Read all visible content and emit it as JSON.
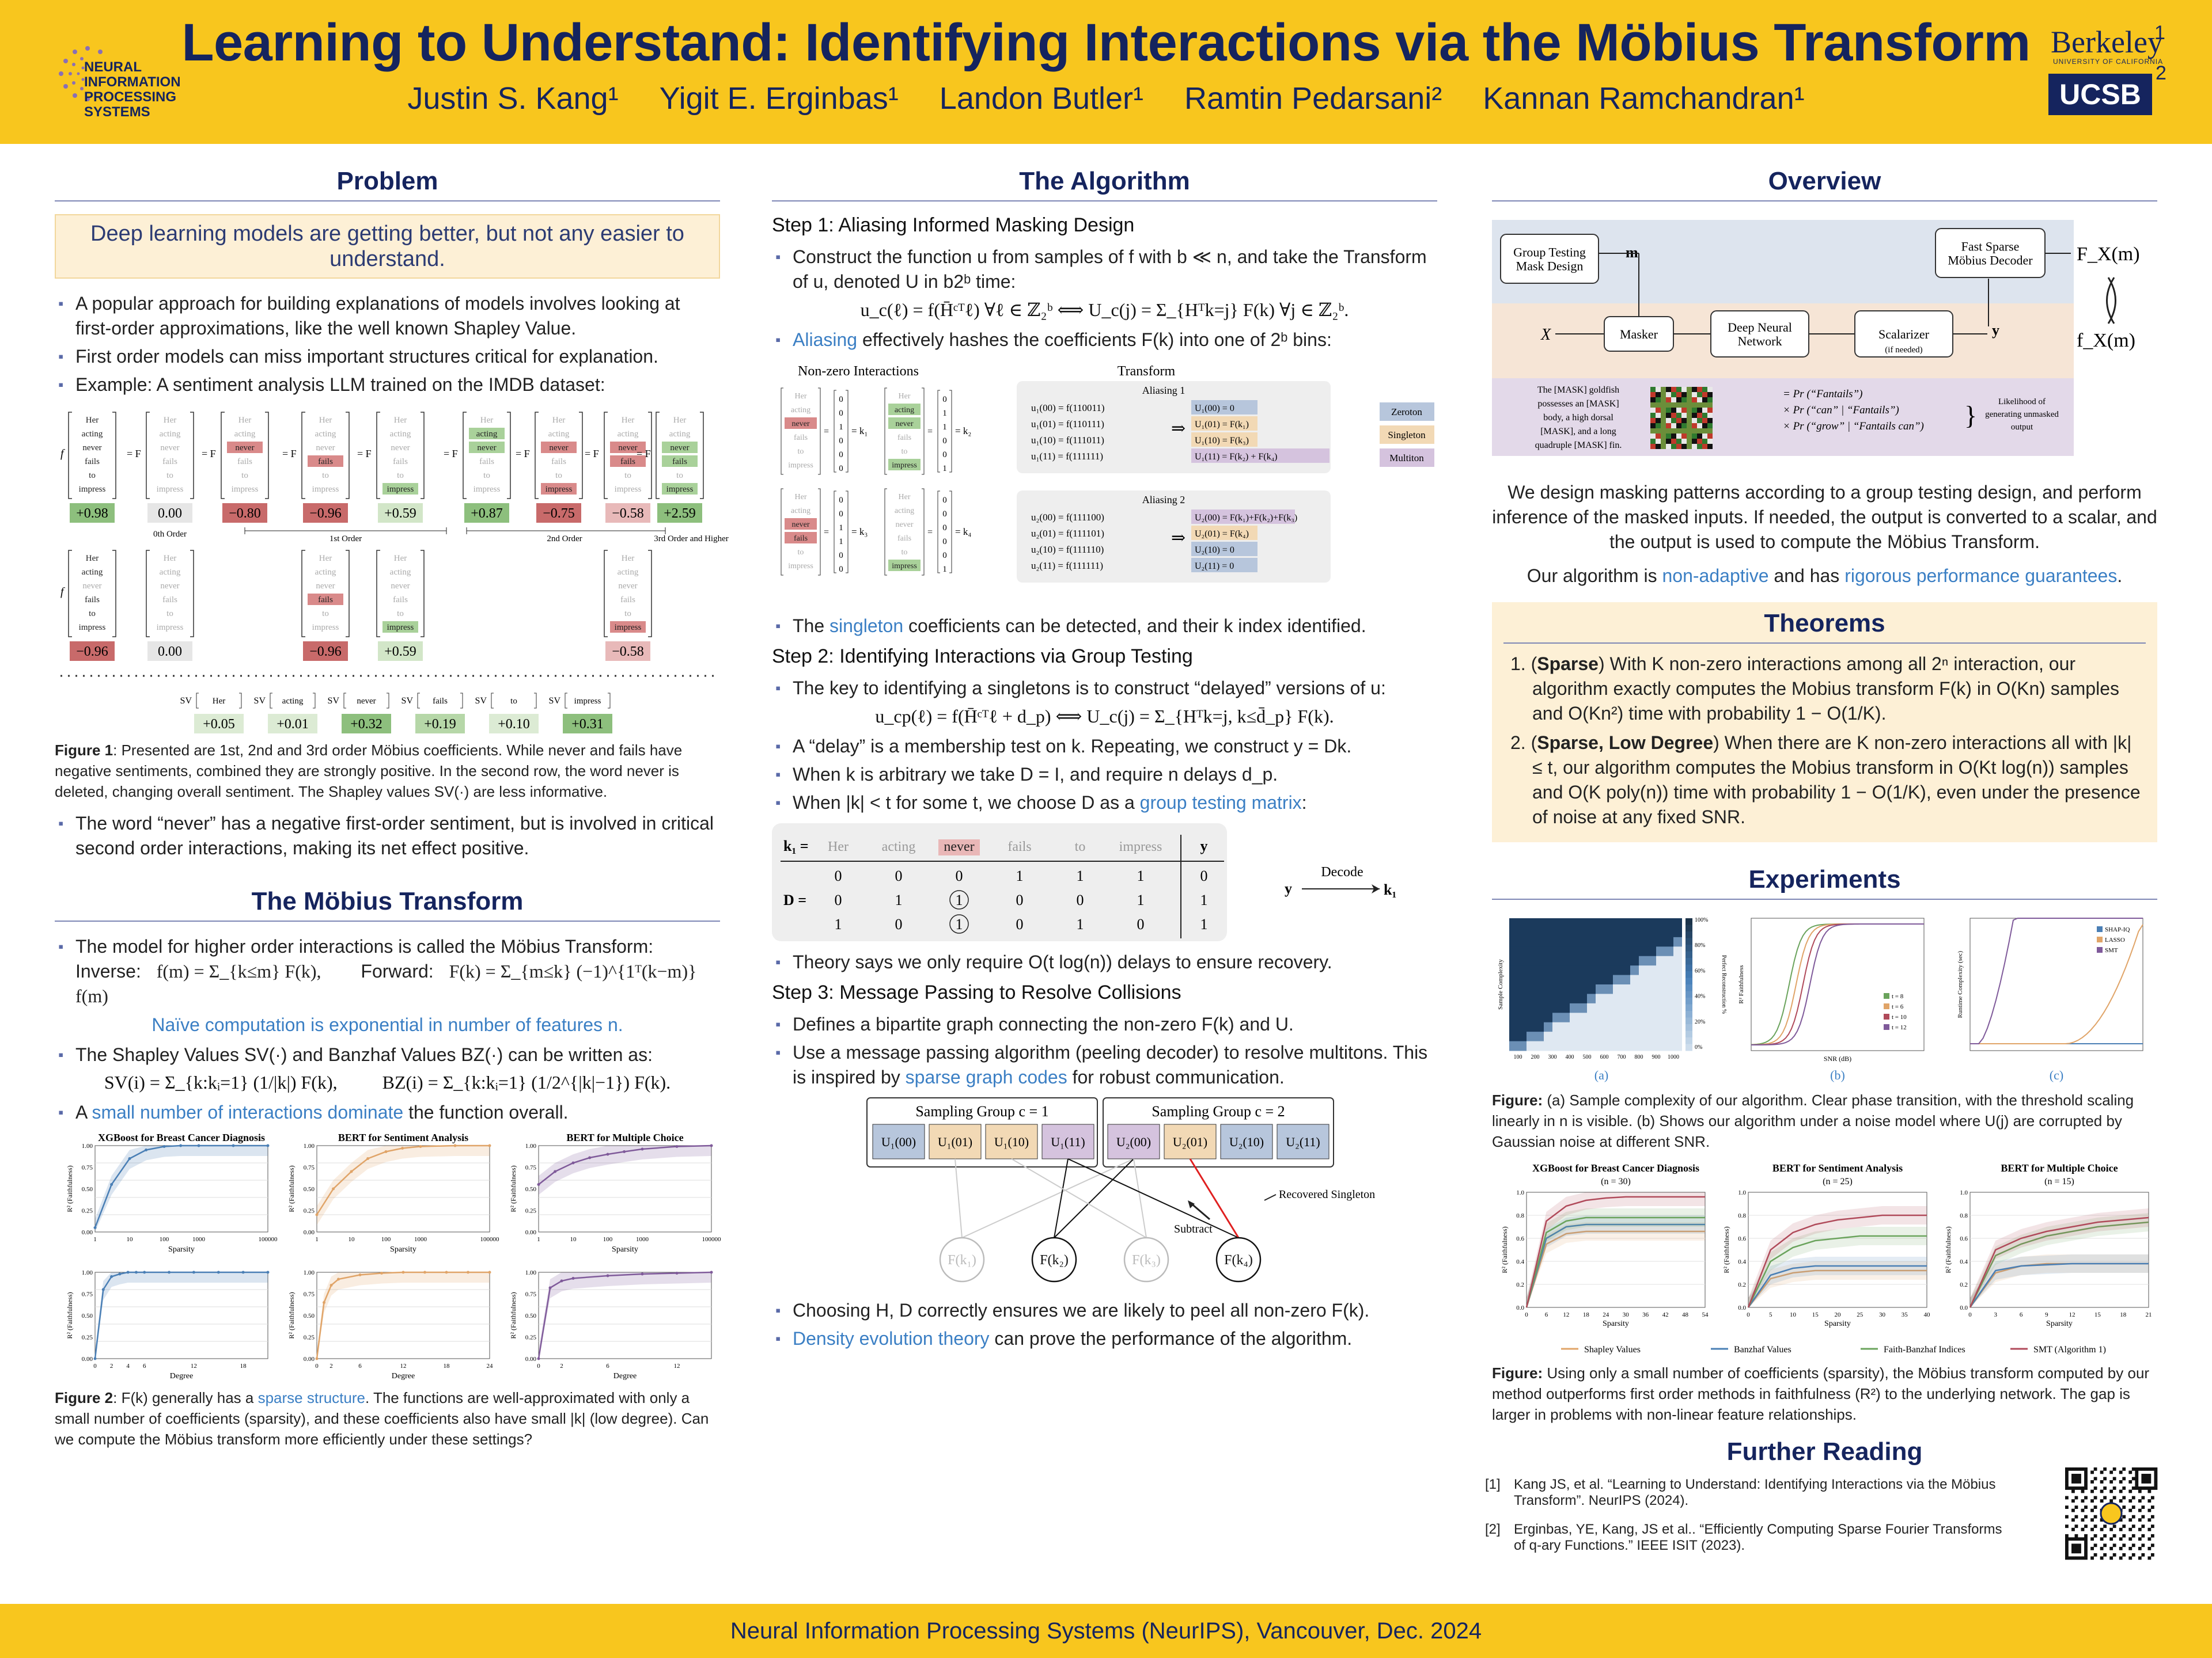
{
  "header": {
    "title": "Learning to Understand: Identifying Interactions via the Möbius Transform",
    "authors": [
      "Justin S. Kang¹",
      "Yigit E. Erginbas¹",
      "Landon Butler¹",
      "Ramtin Pedarsani²",
      "Kannan Ramchandran¹"
    ],
    "logo_left": "NEURAL INFORMATION PROCESSING SYSTEMS",
    "logo_right_1": "Berkeley",
    "logo_right_1_sub": "UNIVERSITY OF CALIFORNIA",
    "logo_right_2": "UCSB",
    "aff_1": "1",
    "aff_2": "2"
  },
  "footer": "Neural Information Processing Systems (NeurIPS), Vancouver, Dec. 2024",
  "problem": {
    "title": "Problem",
    "callout": "Deep learning models are getting better, but not any easier to understand.",
    "bullets": [
      "A popular approach for building explanations of models involves looking at first-order approximations, like the well known Shapley Value.",
      "First order models can miss important structures critical for explanation.",
      "Example: A sentiment analysis LLM trained on the IMDB dataset:"
    ],
    "fig1_words": [
      "Her",
      "acting",
      "never",
      "fails",
      "to",
      "impress"
    ],
    "fig1_row1_values": [
      "+0.98",
      "0.00",
      "−0.80",
      "−0.96",
      "+0.59",
      "+0.87",
      "−0.75",
      "−0.58",
      "+2.59"
    ],
    "fig1_row2_values": [
      "−0.96",
      "0.00",
      "−0.96",
      "+0.59",
      "−0.58"
    ],
    "fig1_orders": [
      "0th Order",
      "1st Order",
      "2nd Order",
      "3rd Order and Higher"
    ],
    "sv_values": [
      "+0.05",
      "+0.01",
      "+0.32",
      "+0.19",
      "+0.10",
      "+0.31"
    ],
    "sv_label": "SV",
    "fig1_caption_lead": "Figure 1",
    "fig1_caption": ": Presented are 1st, 2nd and 3rd order Möbius coefficients. While never and fails have negative sentiments, combined they are strongly positive. In the second row, the word never is deleted, changing overall sentiment. The Shapley values SV(·) are less informative.",
    "bullet_after": "The word “never” has a negative first-order sentiment, but is involved in critical second order interactions, making its net effect positive."
  },
  "mobius": {
    "title": "The Möbius Transform",
    "b1": "The model for higher order interactions is called the Möbius Transform:",
    "inverse_label": "Inverse:",
    "inverse_eq": "f(m) = Σ_{k≤m} F(k),",
    "forward_label": "Forward:",
    "forward_eq": "F(k) = Σ_{m≤k} (−1)^{1ᵀ(k−m)} f(m)",
    "naive": "Naïve computation is exponential in number of features n.",
    "b2": "The Shapley Values SV(·) and Banzhaf Values BZ(·) can be written as:",
    "sv_eq": "SV(i) = Σ_{k:kᵢ=1} (1/|k|) F(k),",
    "bz_eq": "BZ(i) = Σ_{k:kᵢ=1} (1/2^{|k|−1}) F(k).",
    "b3_pre": "A ",
    "b3_link": "small number of interactions dominate",
    "b3_post": " the function overall.",
    "fig2_titles": [
      "XGBoost for Breast Cancer Diagnosis",
      "BERT for Sentiment Analysis",
      "BERT for Multiple Choice"
    ],
    "fig2_xlabel_top": "Sparsity",
    "fig2_xlabel_bottom": "Degree",
    "fig2_ylabel": "R² (Faithfulness)",
    "fig2_caption_lead": "Figure 2",
    "fig2_caption_pre": ": F(k) generally has a ",
    "fig2_caption_link": "sparse structure",
    "fig2_caption_post": ". The functions are well-approximated with only a small number of coefficients (sparsity), and these coefficients also have small |k| (low degree). Can we compute the Möbius transform more efficiently under these settings?"
  },
  "algorithm": {
    "title": "The Algorithm",
    "step1": "Step 1: Aliasing Informed Masking Design",
    "s1b1": "Construct the function u from samples of f with b ≪ n, and take the Transform of u, denoted U in b2ᵇ time:",
    "s1eq": "u_c(ℓ) = f(H̄ᶜᵀℓ)  ∀ℓ ∈ ℤ₂ᵇ  ⟺  U_c(j) = Σ_{Hᵀk=j} F(k)  ∀j ∈ ℤ₂ᵇ.",
    "s1b2_link": "Aliasing",
    "s1b2": " effectively hashes the coefficients F(k) into one of 2ᵇ bins:",
    "alias_head_left": "Non-zero Interactions",
    "alias_head_right": "Transform",
    "aliasing1": "Aliasing 1",
    "aliasing2": "Aliasing 2",
    "alias1_left": [
      "u₁(00) = f(110011)",
      "u₁(01) = f(110111)",
      "u₁(10) = f(111011)",
      "u₁(11) = f(111111)"
    ],
    "alias1_right": [
      "U₁(00) = 0",
      "U₁(01) = F(k₁)",
      "U₁(10) = F(k₃)",
      "U₁(11) = F(k₂) + F(k₄)"
    ],
    "alias2_left": [
      "u₂(00) = f(111100)",
      "u₂(01) = f(111101)",
      "u₂(10) = f(111110)",
      "u₂(11) = f(111111)"
    ],
    "alias2_right": [
      "U₂(00) = F(k₁)+F(k₂)+F(k₃)",
      "U₂(01) = F(k₄)",
      "U₂(10) = 0",
      "U₂(11) = 0"
    ],
    "legend": [
      "Zeroton",
      "Singleton",
      "Multiton"
    ],
    "kvec_labels": [
      "= k₁",
      "= k₂",
      "= k₃",
      "= k₄"
    ],
    "s1b3_pre": "The ",
    "s1b3_link": "singleton",
    "s1b3_post": " coefficients can be detected, and their k index identified.",
    "step2": "Step 2: Identifying Interactions via Group Testing",
    "s2b1": "The key to identifying a singletons is to construct “delayed” versions of u:",
    "s2eq": "u_cp(ℓ) = f(H̄ᶜᵀℓ + d_p)  ⟺  U_c(j) = Σ_{Hᵀk=j, k≤d̄_p} F(k).",
    "s2b2": "A “delay” is a membership test on k. Repeating, we construct y = Dk.",
    "s2b3": "When k is arbitrary we take D = I, and require n delays d_p.",
    "s2b4_pre": "When |k| < t for some t, we choose D as a ",
    "s2b4_link": "group testing matrix",
    "s2b4_post": ":",
    "gt_k1": "k₁ =",
    "gt_words": [
      "Her",
      "acting",
      "never",
      "fails",
      "to",
      "impress"
    ],
    "gt_y": "y",
    "gt_D": "D =",
    "gt_rows": [
      [
        "0",
        "0",
        "0",
        "1",
        "1",
        "1",
        "0"
      ],
      [
        "0",
        "1",
        "1",
        "0",
        "0",
        "1",
        "1"
      ],
      [
        "1",
        "0",
        "1",
        "0",
        "1",
        "0",
        "1"
      ]
    ],
    "decode_label": "Decode",
    "decode_y": "y",
    "decode_k": "k₁",
    "s2b5": "Theory says we only require O(t log(n)) delays to ensure recovery.",
    "step3": "Step 3: Message Passing to Resolve Collisions",
    "s3b1": "Defines a bipartite graph connecting the non-zero F(k) and U.",
    "s3b2_pre": "Use a message passing algorithm (peeling decoder) to resolve multitons. This is inspired by ",
    "s3b2_link": "sparse graph codes",
    "s3b2_post": " for robust communication.",
    "sg1": "Sampling Group c = 1",
    "sg2": "Sampling Group c = 2",
    "u_nodes": [
      "U₁(00)",
      "U₁(01)",
      "U₁(10)",
      "U₁(11)",
      "U₂(00)",
      "U₂(01)",
      "U₂(10)",
      "U₂(11)"
    ],
    "f_nodes": [
      "F(k₁)",
      "F(k₂)",
      "F(k₃)",
      "F(k₄)"
    ],
    "recovered": "Recovered Singleton",
    "subtract": "Subtract",
    "s3b3": "Choosing H, D correctly ensures we are likely to peel all non-zero F(k).",
    "s3b4_link": "Density evolution theory",
    "s3b4_post": " can prove the performance of the algorithm."
  },
  "overview": {
    "title": "Overview",
    "gt_box": "Group Testing Mask Design",
    "m_label": "m",
    "fsmd_box": "Fast Sparse Möbius Decoder",
    "fxm_top": "F_X(m)",
    "fxm_bottom": "f_X(m)",
    "x_label": "X",
    "masker": "Masker",
    "dnn": "Deep Neural Network",
    "scalarizer": "Scalarizer",
    "scalarizer_sub": "(if needed)",
    "y_label": "y",
    "mask_text": "The [MASK] goldfish possesses an [MASK] body, a high dorsal [MASK], and a long quadruple [MASK] fin.",
    "prob_lines": [
      "= Pr (“Fantails”)",
      "× Pr (“can” | “Fantails”)",
      "× Pr (“grow” | “Fantails can”)"
    ],
    "likelihood": "Likelihood of generating unmasked output",
    "p1": "We design masking patterns according to a group testing design, and perform inference of the masked inputs. If needed, the output is converted to a scalar, and the output is used to compute the Möbius Transform.",
    "p2_pre": "Our algorithm is ",
    "p2_link1": "non-adaptive",
    "p2_mid": " and has ",
    "p2_link2": "rigorous performance guarantees",
    "p2_post": "."
  },
  "theorems": {
    "title": "Theorems",
    "t1_lead": "Sparse",
    "t1": ") With K non-zero interactions among all 2ⁿ interaction, our algorithm exactly computes the Mobius transform F(k) in O(Kn) samples and O(Kn²) time with probability 1 − O(1/K).",
    "t2_lead": "Sparse, Low Degree",
    "t2": ") When there are K non-zero interactions all with |k| ≤ t, our algorithm computes the Mobius transform in O(Kt log(n)) samples and O(K poly(n)) time with probability 1 − O(1/K), even under the presence of noise at any fixed SNR."
  },
  "experiments": {
    "title": "Experiments",
    "panel_labels": [
      "(a)",
      "(b)",
      "(c)"
    ],
    "a_ylabel": "Sample Complexity",
    "a_xticks": [
      "100",
      "200",
      "300",
      "400",
      "500",
      "600",
      "700",
      "800",
      "900",
      "1000"
    ],
    "a_cbar": [
      "100%",
      "80%",
      "60%",
      "40%",
      "20%",
      "0%"
    ],
    "a_cbar_label": "Perfect Reconstruction %",
    "b_ylabel": "R² Faithfulness",
    "b_xlabel": "SNR (dB)",
    "b_legend": [
      "t = 8",
      "t = 6",
      "t = 10",
      "t = 12"
    ],
    "c_ylabel": "Runtime Complexity (sec)",
    "c_legend": [
      "SHAP-IQ",
      "LASSO",
      "SMT"
    ],
    "cap1_lead": "Figure:",
    "cap1": " (a) Sample complexity of our algorithm. Clear phase transition, with the threshold scaling linearly in n is visible. (b) Shows our algorithm under a noise model where U(j) are corrupted by Gaussian noise at different SNR.",
    "fig_titles": [
      "XGBoost for Breast Cancer Diagnosis",
      "BERT for Sentiment Analysis",
      "BERT for Multiple Choice"
    ],
    "fig_subs": [
      "(n = 30)",
      "(n = 25)",
      "(n = 15)"
    ],
    "xlabel": "Sparsity",
    "ylabel": "R² (Faithfulness)",
    "legend": [
      "Shapley Values",
      "Banzhaf Values",
      "Faith-Banzhaf Indices",
      "SMT (Algorithm 1)"
    ],
    "cap2_lead": "Figure:",
    "cap2": " Using only a small number of coefficients (sparsity), the Möbius transform computed by our method outperforms first order methods in faithfulness (R²) to the underlying network. The gap is larger in problems with non-linear feature relationships."
  },
  "further": {
    "title": "Further Reading",
    "refs": [
      [
        "[1]",
        "Kang JS, et al. “Learning to Understand: Identifying Interactions via the Möbius Transform”. NeurIPS (2024)."
      ],
      [
        "[2]",
        "Erginbas, YE, Kang, JS et al.. “Efficiently Computing Sparse Fourier Transforms of q-ary Functions.” IEEE ISIT (2023)."
      ]
    ]
  },
  "chart_data": [
    {
      "type": "line",
      "title": "XGBoost for Breast Cancer Diagnosis",
      "xlabel": "Sparsity",
      "ylabel": "R² (Faithfulness)",
      "xscale": "log",
      "ylim": [
        0,
        1
      ],
      "x": [
        1,
        3,
        10,
        30,
        100,
        300,
        1000,
        10000,
        100000
      ],
      "series": [
        {
          "values": [
            0.05,
            0.55,
            0.85,
            0.95,
            0.99,
            1.0,
            1.0,
            1.0,
            1.0
          ]
        }
      ]
    },
    {
      "type": "line",
      "title": "BERT for Sentiment Analysis",
      "xlabel": "Sparsity",
      "ylabel": "R² (Faithfulness)",
      "xscale": "log",
      "ylim": [
        0,
        1
      ],
      "x": [
        1,
        3,
        10,
        30,
        100,
        300,
        1000,
        10000,
        100000
      ],
      "series": [
        {
          "values": [
            0.2,
            0.5,
            0.7,
            0.85,
            0.93,
            0.97,
            0.99,
            1.0,
            1.0
          ]
        }
      ]
    },
    {
      "type": "line",
      "title": "BERT for Multiple Choice",
      "xlabel": "Sparsity",
      "ylabel": "R² (Faithfulness)",
      "xscale": "log",
      "ylim": [
        0,
        1
      ],
      "x": [
        1,
        3,
        10,
        30,
        100,
        300,
        1000,
        10000,
        100000
      ],
      "series": [
        {
          "values": [
            0.55,
            0.7,
            0.8,
            0.86,
            0.9,
            0.93,
            0.96,
            0.99,
            1.0
          ]
        }
      ]
    },
    {
      "type": "line",
      "title": "XGBoost for Breast Cancer Diagnosis",
      "xlabel": "Degree",
      "ylabel": "R² (Faithfulness)",
      "ylim": [
        0,
        1
      ],
      "x": [
        0,
        1,
        2,
        3,
        4,
        5,
        6,
        9,
        12,
        15,
        18,
        21
      ],
      "series": [
        {
          "values": [
            0.0,
            0.8,
            0.95,
            0.98,
            1.0,
            1.0,
            1.0,
            1.0,
            1.0,
            1.0,
            1.0,
            1.0
          ]
        }
      ]
    },
    {
      "type": "line",
      "title": "BERT for Sentiment Analysis",
      "xlabel": "Degree",
      "ylabel": "R² (Faithfulness)",
      "ylim": [
        0,
        1
      ],
      "x": [
        0,
        1,
        2,
        3,
        6,
        9,
        12,
        15,
        18,
        21,
        24
      ],
      "series": [
        {
          "values": [
            0.0,
            0.65,
            0.85,
            0.92,
            0.97,
            0.99,
            1.0,
            1.0,
            1.0,
            1.0,
            1.0
          ]
        }
      ]
    },
    {
      "type": "line",
      "title": "BERT for Multiple Choice",
      "xlabel": "Degree",
      "ylabel": "R² (Faithfulness)",
      "ylim": [
        0,
        1
      ],
      "x": [
        0,
        1,
        2,
        3,
        6,
        9,
        12,
        15
      ],
      "series": [
        {
          "values": [
            0.0,
            0.82,
            0.9,
            0.93,
            0.96,
            0.98,
            0.99,
            1.0
          ]
        }
      ]
    },
    {
      "type": "line",
      "title": "XGBoost for Breast Cancer Diagnosis",
      "xlabel": "Sparsity",
      "ylabel": "R² (Faithfulness)",
      "ylim": [
        0,
        1
      ],
      "x": [
        0,
        6,
        12,
        18,
        24,
        30,
        36,
        42,
        48,
        54
      ],
      "series": [
        {
          "name": "Shapley Values",
          "values": [
            0.0,
            0.55,
            0.64,
            0.66,
            0.66,
            0.66,
            0.66,
            0.66,
            0.66,
            0.66
          ]
        },
        {
          "name": "Banzhaf Values",
          "values": [
            0.0,
            0.6,
            0.7,
            0.72,
            0.72,
            0.72,
            0.72,
            0.72,
            0.72,
            0.72
          ]
        },
        {
          "name": "Faith-Banzhaf Indices",
          "values": [
            0.0,
            0.65,
            0.75,
            0.78,
            0.78,
            0.78,
            0.78,
            0.78,
            0.78,
            0.78
          ]
        },
        {
          "name": "SMT (Algorithm 1)",
          "values": [
            0.0,
            0.75,
            0.88,
            0.93,
            0.95,
            0.96,
            0.96,
            0.96,
            0.96,
            0.96
          ]
        }
      ]
    },
    {
      "type": "line",
      "title": "BERT for Sentiment Analysis",
      "xlabel": "Sparsity",
      "ylabel": "R² (Faithfulness)",
      "ylim": [
        0,
        1
      ],
      "x": [
        0,
        5,
        10,
        15,
        20,
        25,
        30,
        35,
        40
      ],
      "series": [
        {
          "name": "Shapley Values",
          "values": [
            0.0,
            0.25,
            0.3,
            0.32,
            0.32,
            0.32,
            0.32,
            0.32,
            0.32
          ]
        },
        {
          "name": "Banzhaf Values",
          "values": [
            0.0,
            0.28,
            0.34,
            0.36,
            0.36,
            0.36,
            0.36,
            0.36,
            0.36
          ]
        },
        {
          "name": "Faith-Banzhaf Indices",
          "values": [
            0.0,
            0.4,
            0.52,
            0.58,
            0.6,
            0.62,
            0.62,
            0.62,
            0.62
          ]
        },
        {
          "name": "SMT (Algorithm 1)",
          "values": [
            0.0,
            0.5,
            0.65,
            0.72,
            0.76,
            0.78,
            0.8,
            0.8,
            0.8
          ]
        }
      ]
    },
    {
      "type": "line",
      "title": "BERT for Multiple Choice",
      "xlabel": "Sparsity",
      "ylabel": "R² (Faithfulness)",
      "ylim": [
        0,
        1
      ],
      "x": [
        0,
        3,
        6,
        9,
        12,
        15,
        18,
        21
      ],
      "series": [
        {
          "name": "Shapley Values",
          "values": [
            0.0,
            0.3,
            0.36,
            0.38,
            0.38,
            0.38,
            0.38,
            0.38
          ]
        },
        {
          "name": "Banzhaf Values",
          "values": [
            0.0,
            0.32,
            0.36,
            0.37,
            0.38,
            0.38,
            0.38,
            0.38
          ]
        },
        {
          "name": "Faith-Banzhaf Indices",
          "values": [
            0.0,
            0.45,
            0.55,
            0.62,
            0.66,
            0.7,
            0.72,
            0.74
          ]
        },
        {
          "name": "SMT (Algorithm 1)",
          "values": [
            0.0,
            0.5,
            0.6,
            0.66,
            0.7,
            0.74,
            0.76,
            0.78
          ]
        }
      ]
    }
  ],
  "colors": {
    "navy": "#15245e",
    "yellow": "#f8c61e",
    "accent_blue": "#3b7fc4",
    "shapley": "#e0a468",
    "banzhaf": "#4a7fb5",
    "faith": "#6aa35c",
    "smt": "#b04a5a",
    "purple": "#7f5a9a"
  }
}
